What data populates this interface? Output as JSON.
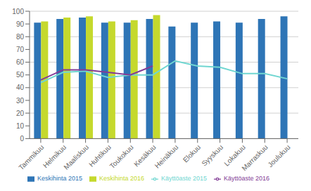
{
  "chart_data": {
    "type": "bar",
    "categories": [
      "Tammikuu",
      "Helmikuu",
      "Maaliskuu",
      "Huhtikuu",
      "Toukokuu",
      "Kesäkuu",
      "Heinäkuu",
      "Elokuu",
      "Syyskuu",
      "Lokakuu",
      "Marraskuu",
      "Joulukuu"
    ],
    "series": [
      {
        "name": "Keskihinta 2015",
        "type": "bar",
        "color": "#2e75b6",
        "values": [
          91,
          94,
          95,
          91,
          91,
          94,
          88,
          91,
          92,
          91,
          94,
          96
        ]
      },
      {
        "name": "Keskihinta 2016",
        "type": "bar",
        "color": "#c5d92d",
        "values": [
          92,
          95,
          96,
          92,
          93,
          97,
          null,
          null,
          null,
          null,
          null,
          null
        ]
      },
      {
        "name": "Käyttöaste 2015",
        "type": "line",
        "color": "#70d6d1",
        "values": [
          44,
          52,
          53,
          48,
          50,
          50,
          61,
          57,
          56,
          51,
          51,
          47
        ]
      },
      {
        "name": "Käyttöaste 2016",
        "type": "line",
        "color": "#833c96",
        "values": [
          46,
          54,
          54,
          52,
          50,
          57,
          null,
          null,
          null,
          null,
          null,
          null
        ]
      }
    ],
    "ylim": [
      0,
      100
    ],
    "yticks": [
      0,
      10,
      20,
      30,
      40,
      50,
      60,
      70,
      80,
      90,
      100
    ],
    "grid": true,
    "legend": "bottom"
  }
}
